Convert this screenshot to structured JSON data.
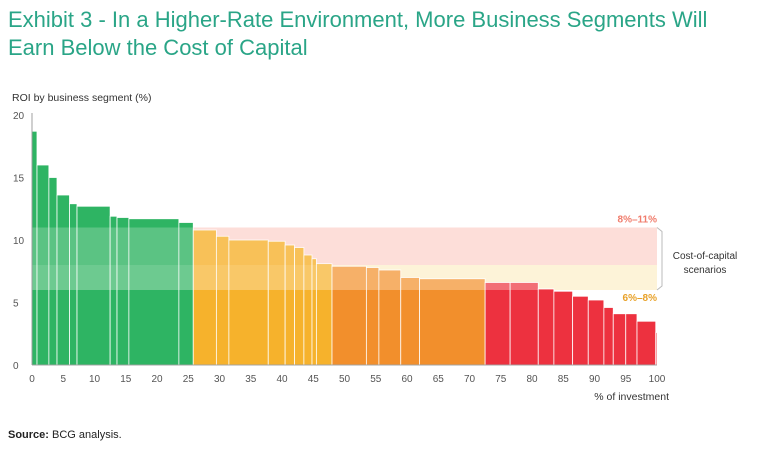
{
  "title": {
    "line1": "Exhibit 3 - In a Higher-Rate Environment, More Business Segments Will",
    "line2": "Earn Below the Cost of Capital"
  },
  "source": {
    "label": "Source:",
    "text": "BCG analysis."
  },
  "colors": {
    "title": "#2aa587",
    "bar_fill": [
      "#22b05a",
      "#f6ae1f",
      "#f2891f",
      "#ec2534"
    ],
    "high_band": "#fdd5cf",
    "low_band": "#fdeec8",
    "high_label": "#f07c6c",
    "low_label": "#e8a128",
    "axis": "#888888"
  },
  "chart_data": {
    "type": "bar",
    "subtype": "variable-width step bar",
    "title": "Exhibit 3 - In a Higher-Rate Environment, More Business Segments Will Earn Below the Cost of Capital",
    "ylabel": "ROI by business segment (%)",
    "xlabel": "% of investment",
    "xlim": [
      0,
      100
    ],
    "ylim": [
      0,
      20
    ],
    "xticks": [
      0,
      5,
      10,
      15,
      20,
      25,
      30,
      35,
      40,
      45,
      50,
      55,
      60,
      65,
      70,
      75,
      80,
      85,
      90,
      95,
      100
    ],
    "yticks": [
      0,
      5,
      10,
      15,
      20
    ],
    "segments": [
      {
        "x0": 0,
        "x1": 0.8,
        "value": 18.7,
        "group": 0
      },
      {
        "x0": 0.8,
        "x1": 2.7,
        "value": 16.0,
        "group": 0
      },
      {
        "x0": 2.7,
        "x1": 4.0,
        "value": 15.0,
        "group": 0
      },
      {
        "x0": 4.0,
        "x1": 6.0,
        "value": 13.6,
        "group": 0
      },
      {
        "x0": 6.0,
        "x1": 7.2,
        "value": 12.9,
        "group": 0
      },
      {
        "x0": 7.2,
        "x1": 12.5,
        "value": 12.7,
        "group": 0
      },
      {
        "x0": 12.5,
        "x1": 13.6,
        "value": 11.9,
        "group": 0
      },
      {
        "x0": 13.6,
        "x1": 15.5,
        "value": 11.8,
        "group": 0
      },
      {
        "x0": 15.5,
        "x1": 23.5,
        "value": 11.7,
        "group": 0
      },
      {
        "x0": 23.5,
        "x1": 25.8,
        "value": 11.4,
        "group": 0
      },
      {
        "x0": 25.8,
        "x1": 29.5,
        "value": 10.8,
        "group": 1
      },
      {
        "x0": 29.5,
        "x1": 31.5,
        "value": 10.3,
        "group": 1
      },
      {
        "x0": 31.5,
        "x1": 37.8,
        "value": 10.0,
        "group": 1
      },
      {
        "x0": 37.8,
        "x1": 40.5,
        "value": 9.9,
        "group": 1
      },
      {
        "x0": 40.5,
        "x1": 42.0,
        "value": 9.6,
        "group": 1
      },
      {
        "x0": 42.0,
        "x1": 43.5,
        "value": 9.4,
        "group": 1
      },
      {
        "x0": 43.5,
        "x1": 44.8,
        "value": 8.8,
        "group": 1
      },
      {
        "x0": 44.8,
        "x1": 45.5,
        "value": 8.5,
        "group": 1
      },
      {
        "x0": 45.5,
        "x1": 48.0,
        "value": 8.1,
        "group": 1
      },
      {
        "x0": 48.0,
        "x1": 53.5,
        "value": 7.9,
        "group": 2
      },
      {
        "x0": 53.5,
        "x1": 55.5,
        "value": 7.8,
        "group": 2
      },
      {
        "x0": 55.5,
        "x1": 59.0,
        "value": 7.6,
        "group": 2
      },
      {
        "x0": 59.0,
        "x1": 62.0,
        "value": 7.0,
        "group": 2
      },
      {
        "x0": 62.0,
        "x1": 72.5,
        "value": 6.9,
        "group": 2
      },
      {
        "x0": 72.5,
        "x1": 76.5,
        "value": 6.6,
        "group": 3
      },
      {
        "x0": 76.5,
        "x1": 81.0,
        "value": 6.6,
        "group": 3
      },
      {
        "x0": 81.0,
        "x1": 83.5,
        "value": 6.1,
        "group": 3
      },
      {
        "x0": 83.5,
        "x1": 86.5,
        "value": 5.9,
        "group": 3
      },
      {
        "x0": 86.5,
        "x1": 89.0,
        "value": 5.5,
        "group": 3
      },
      {
        "x0": 89.0,
        "x1": 91.5,
        "value": 5.2,
        "group": 3
      },
      {
        "x0": 91.5,
        "x1": 93.0,
        "value": 4.6,
        "group": 3
      },
      {
        "x0": 93.0,
        "x1": 95.0,
        "value": 4.1,
        "group": 3
      },
      {
        "x0": 95.0,
        "x1": 96.8,
        "value": 4.1,
        "group": 3
      },
      {
        "x0": 96.8,
        "x1": 99.8,
        "value": 3.5,
        "group": 3
      },
      {
        "x0": 99.8,
        "x1": 100,
        "value": 2.6,
        "group": 3
      }
    ],
    "bands": [
      {
        "label": "8%–11%",
        "low": 8,
        "high": 11
      },
      {
        "label": "6%–8%",
        "low": 6,
        "high": 8
      }
    ],
    "annotation": {
      "line1": "Cost-of-capital",
      "line2": "scenarios"
    }
  }
}
